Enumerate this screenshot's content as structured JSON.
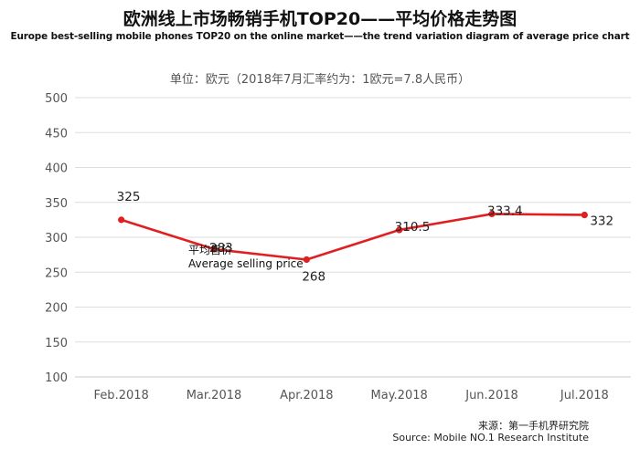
{
  "title": "欧洲线上市场畅销手机TOP20——平均价格走势图",
  "subtitle": "Europe best-selling mobile phones TOP20 on the online market——the trend variation diagram of average price chart",
  "unit_note": "单位：欧元（2018年7月汇率约为：1欧元=7.8人民币）",
  "source_cn": "来源：第一手机界研究院",
  "source_en": "Source: Mobile NO.1 Research Institute",
  "chart_data": {
    "type": "line",
    "categories": [
      "Feb.2018",
      "Mar.2018",
      "Apr.2018",
      "May.2018",
      "Jun.2018",
      "Jul.2018"
    ],
    "series": [
      {
        "name": "平均售价",
        "name_en": "Average selling price",
        "values": [
          325,
          283,
          268,
          310.5,
          333.4,
          332
        ],
        "labels": [
          "325",
          "283",
          "268",
          "310.5",
          "333.4",
          "332"
        ]
      }
    ],
    "ylim": [
      100,
      500
    ],
    "yticks": [
      100,
      150,
      200,
      250,
      300,
      350,
      400,
      450,
      500
    ],
    "grid": true,
    "color": "#e02020"
  }
}
